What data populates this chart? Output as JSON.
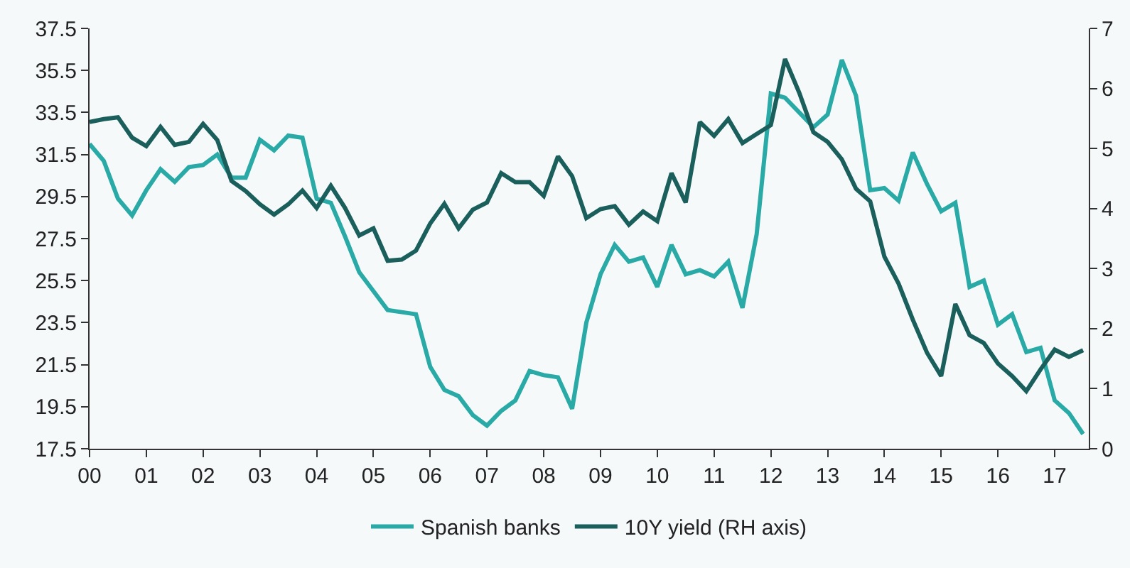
{
  "chart_data": {
    "type": "line",
    "x": [
      2000,
      2000.25,
      2000.5,
      2000.75,
      2001,
      2001.25,
      2001.5,
      2001.75,
      2002,
      2002.25,
      2002.5,
      2002.75,
      2003,
      2003.25,
      2003.5,
      2003.75,
      2004,
      2004.25,
      2004.5,
      2004.75,
      2005,
      2005.25,
      2005.5,
      2005.75,
      2006,
      2006.25,
      2006.5,
      2006.75,
      2007,
      2007.25,
      2007.5,
      2007.75,
      2008,
      2008.25,
      2008.5,
      2008.75,
      2009,
      2009.25,
      2009.5,
      2009.75,
      2010,
      2010.25,
      2010.5,
      2010.75,
      2011,
      2011.25,
      2011.5,
      2011.75,
      2012,
      2012.25,
      2012.5,
      2012.75,
      2013,
      2013.25,
      2013.5,
      2013.75,
      2014,
      2014.25,
      2014.5,
      2014.75,
      2015,
      2015.25,
      2015.5,
      2015.75,
      2016,
      2016.25,
      2016.5,
      2016.75,
      2017,
      2017.25,
      2017.5
    ],
    "series": [
      {
        "name": "Spanish banks",
        "color": "#2aaaa6",
        "values": [
          32.0,
          31.2,
          29.4,
          28.6,
          29.8,
          30.8,
          30.2,
          30.9,
          31.0,
          31.5,
          30.4,
          30.4,
          32.2,
          31.7,
          32.4,
          32.3,
          29.4,
          29.2,
          27.6,
          25.9,
          25.0,
          24.1,
          24.0,
          23.9,
          21.4,
          20.3,
          20.0,
          19.1,
          18.6,
          19.3,
          19.8,
          21.2,
          21.0,
          20.9,
          19.4,
          23.5,
          25.8,
          27.2,
          26.4,
          26.6,
          25.2,
          27.2,
          25.8,
          26.0,
          25.7,
          26.4,
          24.2,
          27.7,
          34.4,
          34.2,
          33.5,
          32.8,
          33.4,
          36.0,
          34.3,
          29.8,
          29.9,
          29.3,
          31.6,
          30.1,
          28.8,
          29.2,
          25.2,
          25.5,
          23.4,
          23.9,
          22.1,
          22.3,
          19.8,
          19.2,
          18.2
        ]
      },
      {
        "name": "10Y yield (RH axis)",
        "color": "#1a5f5c",
        "axis": "y2",
        "values": [
          5.44,
          5.49,
          5.52,
          5.18,
          5.04,
          5.36,
          5.06,
          5.11,
          5.41,
          5.14,
          4.46,
          4.29,
          4.07,
          3.9,
          4.07,
          4.3,
          4.01,
          4.38,
          4.01,
          3.55,
          3.67,
          3.13,
          3.15,
          3.3,
          3.75,
          4.08,
          3.67,
          3.98,
          4.1,
          4.59,
          4.44,
          4.44,
          4.21,
          4.87,
          4.54,
          3.84,
          3.99,
          4.04,
          3.73,
          3.95,
          3.79,
          4.59,
          4.1,
          5.44,
          5.21,
          5.49,
          5.09,
          5.24,
          5.39,
          6.49,
          5.93,
          5.27,
          5.11,
          4.82,
          4.33,
          4.12,
          3.2,
          2.75,
          2.15,
          1.6,
          1.21,
          2.41,
          1.89,
          1.76,
          1.42,
          1.21,
          0.96,
          1.32,
          1.65,
          1.53,
          1.64
        ]
      }
    ],
    "xlim": [
      2000,
      2017.6
    ],
    "xticks": [
      {
        "value": 2000,
        "label": "00"
      },
      {
        "value": 2001,
        "label": "01"
      },
      {
        "value": 2002,
        "label": "02"
      },
      {
        "value": 2003,
        "label": "03"
      },
      {
        "value": 2004,
        "label": "04"
      },
      {
        "value": 2005,
        "label": "05"
      },
      {
        "value": 2006,
        "label": "06"
      },
      {
        "value": 2007,
        "label": "07"
      },
      {
        "value": 2008,
        "label": "08"
      },
      {
        "value": 2009,
        "label": "09"
      },
      {
        "value": 2010,
        "label": "10"
      },
      {
        "value": 2011,
        "label": "11"
      },
      {
        "value": 2012,
        "label": "12"
      },
      {
        "value": 2013,
        "label": "13"
      },
      {
        "value": 2014,
        "label": "14"
      },
      {
        "value": 2015,
        "label": "15"
      },
      {
        "value": 2016,
        "label": "16"
      },
      {
        "value": 2017,
        "label": "17"
      }
    ],
    "ylim": [
      17.5,
      37.5
    ],
    "yticks": [
      17.5,
      19.5,
      21.5,
      23.5,
      25.5,
      27.5,
      29.5,
      31.5,
      33.5,
      35.5,
      37.5
    ],
    "y2lim": [
      0,
      7
    ],
    "y2ticks": [
      0,
      1,
      2,
      3,
      4,
      5,
      6,
      7
    ],
    "grid": false,
    "legend": "bottom",
    "marker": "none",
    "line_style": "solid"
  }
}
